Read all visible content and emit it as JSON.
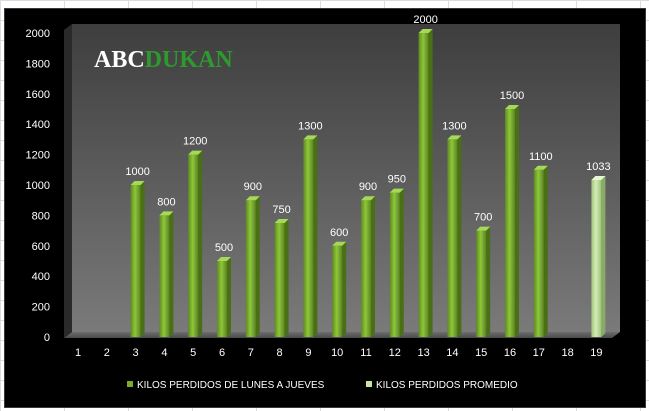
{
  "logo": {
    "part1": "ABC",
    "part2": "DUKAN"
  },
  "chart_data": {
    "type": "bar",
    "categories": [
      "1",
      "2",
      "3",
      "4",
      "5",
      "6",
      "7",
      "8",
      "9",
      "10",
      "11",
      "12",
      "13",
      "14",
      "15",
      "16",
      "17",
      "18",
      "19"
    ],
    "series": [
      {
        "name": "KILOS PERDIDOS DE LUNES A JUEVES",
        "color": "#7aab2e",
        "values": [
          null,
          null,
          1000,
          800,
          1200,
          500,
          900,
          750,
          1300,
          600,
          900,
          950,
          2000,
          1300,
          700,
          1500,
          1100,
          null,
          null
        ],
        "labels": [
          "",
          "",
          "1000",
          "800",
          "1200",
          "500",
          "900",
          "750",
          "1300",
          "600",
          "900",
          "950",
          "2000",
          "1300",
          "700",
          "1500",
          "1100",
          "",
          ""
        ]
      },
      {
        "name": "KILOS PERDIDOS PROMEDIO",
        "color": "#c8e6a0",
        "values": [
          null,
          null,
          null,
          null,
          null,
          null,
          null,
          null,
          null,
          null,
          null,
          null,
          null,
          null,
          null,
          null,
          null,
          null,
          1033
        ],
        "labels": [
          "",
          "",
          "",
          "",
          "",
          "",
          "",
          "",
          "",
          "",
          "",
          "",
          "",
          "",
          "",
          "",
          "",
          "",
          "1033"
        ]
      }
    ],
    "yticks": [
      "0",
      "200",
      "400",
      "600",
      "800",
      "1000",
      "1200",
      "1400",
      "1600",
      "1800",
      "2000"
    ],
    "ylim": [
      0,
      2000
    ],
    "legend_position": "bottom",
    "grid": false
  }
}
